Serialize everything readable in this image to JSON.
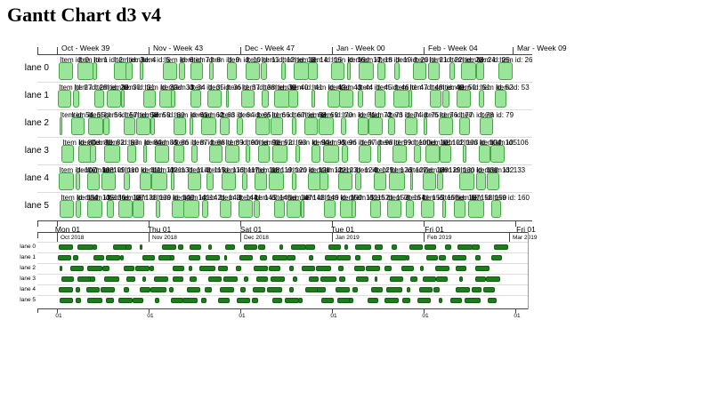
{
  "title": "Gantt Chart d3 v4",
  "colors": {
    "main_bar_fill": "#9ae59a",
    "main_bar_border": "#46a546",
    "mini_bar_fill": "#1d7d1d",
    "mini_bar_border": "#0e5e0e",
    "lane_line": "#dddddd",
    "axis_line": "#444444",
    "mini_border": "#999999",
    "text": "#000000"
  },
  "chart_data": {
    "type": "bar",
    "subtype": "gantt-swimlane",
    "title": "Gantt Chart d3 v4",
    "lanes": [
      "lane 0",
      "lane 1",
      "lane 2",
      "lane 3",
      "lane 4",
      "lane 5"
    ],
    "item_label_prefix": "Item id: ",
    "units": "percent_of_timeline",
    "main_top_axis": {
      "labels": [
        "Oct - Week 39",
        "Nov - Week 43",
        "Dec - Week 47",
        "Jan - Week 00",
        "Feb - Week 04",
        "Mar - Week 09"
      ],
      "fracs": [
        0.04,
        0.225,
        0.41,
        0.595,
        0.781,
        0.96
      ]
    },
    "main_bottom_axis": {
      "labels": [
        "Mon 01",
        "Thu 01",
        "Sat 01",
        "Tue 01",
        "Fri 01",
        "Fri 01"
      ],
      "fracs": [
        0.04,
        0.225,
        0.41,
        0.595,
        0.781,
        0.966
      ]
    },
    "mini_top_axis": {
      "labels": [
        "Oct 2018",
        "Nov 2018",
        "Dec 2018",
        "Jan 2019",
        "Feb 2019",
        "Mar 2019"
      ],
      "fracs": [
        0.04,
        0.227,
        0.414,
        0.601,
        0.787,
        0.962
      ]
    },
    "mini_bottom_axis": {
      "labels": [
        "01",
        "01",
        "01",
        "01",
        "01",
        "01"
      ],
      "fracs": [
        0.04,
        0.227,
        0.414,
        0.601,
        0.787,
        0.974
      ]
    },
    "series": [
      {
        "lane": "lane 0",
        "items": [
          [
            0.4,
            3.0,
            0
          ],
          [
            4.3,
            3.4,
            1
          ],
          [
            7.5,
            1.0,
            2
          ],
          [
            11.9,
            3.2,
            3
          ],
          [
            14.5,
            1.4,
            4
          ],
          [
            17.5,
            0.7,
            5
          ],
          [
            22.3,
            3.0,
            6
          ],
          [
            25.7,
            1.2,
            7
          ],
          [
            28.1,
            2.6,
            8
          ],
          [
            32.1,
            0.8,
            9
          ],
          [
            35.7,
            2.2,
            10
          ],
          [
            39.6,
            3.0,
            11
          ],
          [
            42.8,
            1.4,
            12
          ],
          [
            47.2,
            0.9,
            13
          ],
          [
            49.8,
            3.2,
            14
          ],
          [
            52.8,
            2.0,
            15
          ],
          [
            57.6,
            2.8,
            16
          ],
          [
            61.0,
            0.9,
            17
          ],
          [
            63.4,
            3.3,
            18
          ],
          [
            67.4,
            1.8,
            19
          ],
          [
            71.0,
            1.2,
            20
          ],
          [
            74.9,
            2.8,
            21
          ],
          [
            78.1,
            2.4,
            22
          ],
          [
            82.5,
            1.3,
            23
          ],
          [
            85.1,
            3.1,
            24
          ],
          [
            88.1,
            1.7,
            25
          ],
          [
            92.9,
            3.0,
            26
          ]
        ]
      },
      {
        "lane": "lane 1",
        "items": [
          [
            0.2,
            2.8,
            27
          ],
          [
            3.4,
            1.2,
            28
          ],
          [
            7.8,
            2.2,
            29
          ],
          [
            10.4,
            3.1,
            30
          ],
          [
            13.4,
            0.8,
            31
          ],
          [
            18.2,
            2.6,
            32
          ],
          [
            21.6,
            3.2,
            33
          ],
          [
            24.0,
            1.0,
            34
          ],
          [
            28.0,
            2.4,
            35
          ],
          [
            31.6,
            3.0,
            36
          ],
          [
            35.5,
            0.7,
            37
          ],
          [
            38.7,
            2.9,
            38
          ],
          [
            43.1,
            1.5,
            39
          ],
          [
            45.7,
            3.3,
            40
          ],
          [
            48.7,
            2.0,
            41
          ],
          [
            53.5,
            0.9,
            42
          ],
          [
            56.9,
            2.7,
            43
          ],
          [
            59.3,
            3.1,
            44
          ],
          [
            63.3,
            1.2,
            45
          ],
          [
            66.9,
            2.2,
            46
          ],
          [
            70.8,
            3.4,
            47
          ],
          [
            74.0,
            0.8,
            48
          ],
          [
            78.4,
            2.5,
            49
          ],
          [
            81.0,
            1.6,
            50
          ],
          [
            84.0,
            3.0,
            51
          ],
          [
            88.8,
            1.1,
            52
          ],
          [
            92.2,
            2.3,
            53
          ]
        ]
      },
      {
        "lane": "lane 2",
        "items": [
          [
            0.5,
            0.7,
            54
          ],
          [
            2.9,
            2.8,
            55
          ],
          [
            6.5,
            3.2,
            56
          ],
          [
            9.7,
            1.4,
            57
          ],
          [
            14.1,
            2.4,
            58
          ],
          [
            16.7,
            3.0,
            59
          ],
          [
            19.7,
            1.0,
            60
          ],
          [
            24.5,
            2.6,
            61
          ],
          [
            27.9,
            0.8,
            62
          ],
          [
            30.3,
            3.3,
            63
          ],
          [
            34.3,
            2.1,
            64
          ],
          [
            37.9,
            1.2,
            65
          ],
          [
            41.8,
            3.0,
            66
          ],
          [
            45.0,
            2.5,
            67
          ],
          [
            49.4,
            0.9,
            68
          ],
          [
            52.0,
            2.8,
            69
          ],
          [
            55.0,
            3.2,
            70
          ],
          [
            59.8,
            1.1,
            71
          ],
          [
            63.2,
            2.3,
            72
          ],
          [
            65.6,
            3.0,
            73
          ],
          [
            69.6,
            1.5,
            74
          ],
          [
            73.2,
            2.7,
            75
          ],
          [
            77.1,
            0.8,
            76
          ],
          [
            80.3,
            3.1,
            77
          ],
          [
            84.7,
            2.2,
            78
          ],
          [
            88.9,
            2.9,
            79
          ]
        ]
      },
      {
        "lane": "lane 3",
        "items": [
          [
            1.0,
            2.6,
            80
          ],
          [
            4.4,
            3.0,
            81
          ],
          [
            7.0,
            1.2,
            82
          ],
          [
            10.0,
            3.3,
            83
          ],
          [
            14.8,
            1.8,
            84
          ],
          [
            18.2,
            0.8,
            85
          ],
          [
            20.6,
            3.0,
            86
          ],
          [
            24.6,
            2.2,
            87
          ],
          [
            28.2,
            1.4,
            88
          ],
          [
            32.1,
            2.8,
            89
          ],
          [
            35.3,
            3.1,
            90
          ],
          [
            39.7,
            0.9,
            91
          ],
          [
            42.3,
            2.5,
            92
          ],
          [
            45.3,
            3.2,
            93
          ],
          [
            50.1,
            1.0,
            94
          ],
          [
            53.5,
            2.0,
            95
          ],
          [
            55.9,
            3.4,
            96
          ],
          [
            59.9,
            1.3,
            97
          ],
          [
            63.5,
            2.6,
            98
          ],
          [
            67.4,
            0.7,
            99
          ],
          [
            70.6,
            3.0,
            100
          ],
          [
            75.0,
            1.6,
            101
          ],
          [
            77.6,
            2.9,
            102
          ],
          [
            80.6,
            2.3,
            103
          ],
          [
            85.4,
            0.8,
            104
          ],
          [
            88.8,
            2.4,
            105
          ],
          [
            91.2,
            3.0,
            106
          ]
        ]
      },
      {
        "lane": "lane 4",
        "items": [
          [
            0.3,
            3.2,
            107
          ],
          [
            3.9,
            1.0,
            108
          ],
          [
            6.3,
            2.7,
            109
          ],
          [
            9.3,
            3.0,
            110
          ],
          [
            14.1,
            1.3,
            111
          ],
          [
            17.5,
            2.4,
            112
          ],
          [
            19.9,
            3.3,
            113
          ],
          [
            23.9,
            0.8,
            114
          ],
          [
            27.5,
            2.9,
            115
          ],
          [
            31.4,
            1.5,
            116
          ],
          [
            34.6,
            3.0,
            117
          ],
          [
            39.0,
            1.1,
            118
          ],
          [
            41.6,
            2.6,
            119
          ],
          [
            44.6,
            3.2,
            120
          ],
          [
            49.4,
            0.9,
            121
          ],
          [
            52.8,
            2.8,
            122
          ],
          [
            55.2,
            1.9,
            123
          ],
          [
            59.2,
            3.0,
            124
          ],
          [
            62.8,
            1.2,
            125
          ],
          [
            66.7,
            2.5,
            126
          ],
          [
            69.9,
            3.4,
            127
          ],
          [
            74.3,
            0.7,
            128
          ],
          [
            76.9,
            2.8,
            129
          ],
          [
            79.9,
            1.4,
            130
          ],
          [
            84.7,
            3.1,
            131
          ],
          [
            88.1,
            2.1,
            132
          ],
          [
            90.5,
            2.6,
            133
          ]
        ]
      },
      {
        "lane": "lane 5",
        "items": [
          [
            0.6,
            2.9,
            134
          ],
          [
            4.0,
            1.1,
            135
          ],
          [
            6.4,
            3.2,
            136
          ],
          [
            10.4,
            1.6,
            137
          ],
          [
            13.0,
            3.0,
            138
          ],
          [
            16.0,
            2.4,
            139
          ],
          [
            20.8,
            0.9,
            140
          ],
          [
            24.2,
            2.7,
            141
          ],
          [
            26.6,
            3.3,
            142
          ],
          [
            30.6,
            1.2,
            143
          ],
          [
            34.2,
            2.5,
            144
          ],
          [
            38.1,
            3.0,
            145
          ],
          [
            41.3,
            1.4,
            146
          ],
          [
            45.7,
            2.2,
            147
          ],
          [
            48.3,
            3.1,
            148
          ],
          [
            51.3,
            0.8,
            149
          ],
          [
            56.1,
            2.6,
            150
          ],
          [
            59.5,
            3.2,
            151
          ],
          [
            61.9,
            1.0,
            152
          ],
          [
            65.9,
            2.3,
            153
          ],
          [
            69.5,
            3.0,
            154
          ],
          [
            73.4,
            1.7,
            155
          ],
          [
            76.6,
            2.8,
            156
          ],
          [
            81.0,
            0.9,
            157
          ],
          [
            83.6,
            2.4,
            158
          ],
          [
            86.6,
            3.3,
            159
          ],
          [
            91.4,
            2.0,
            160
          ]
        ]
      }
    ]
  }
}
